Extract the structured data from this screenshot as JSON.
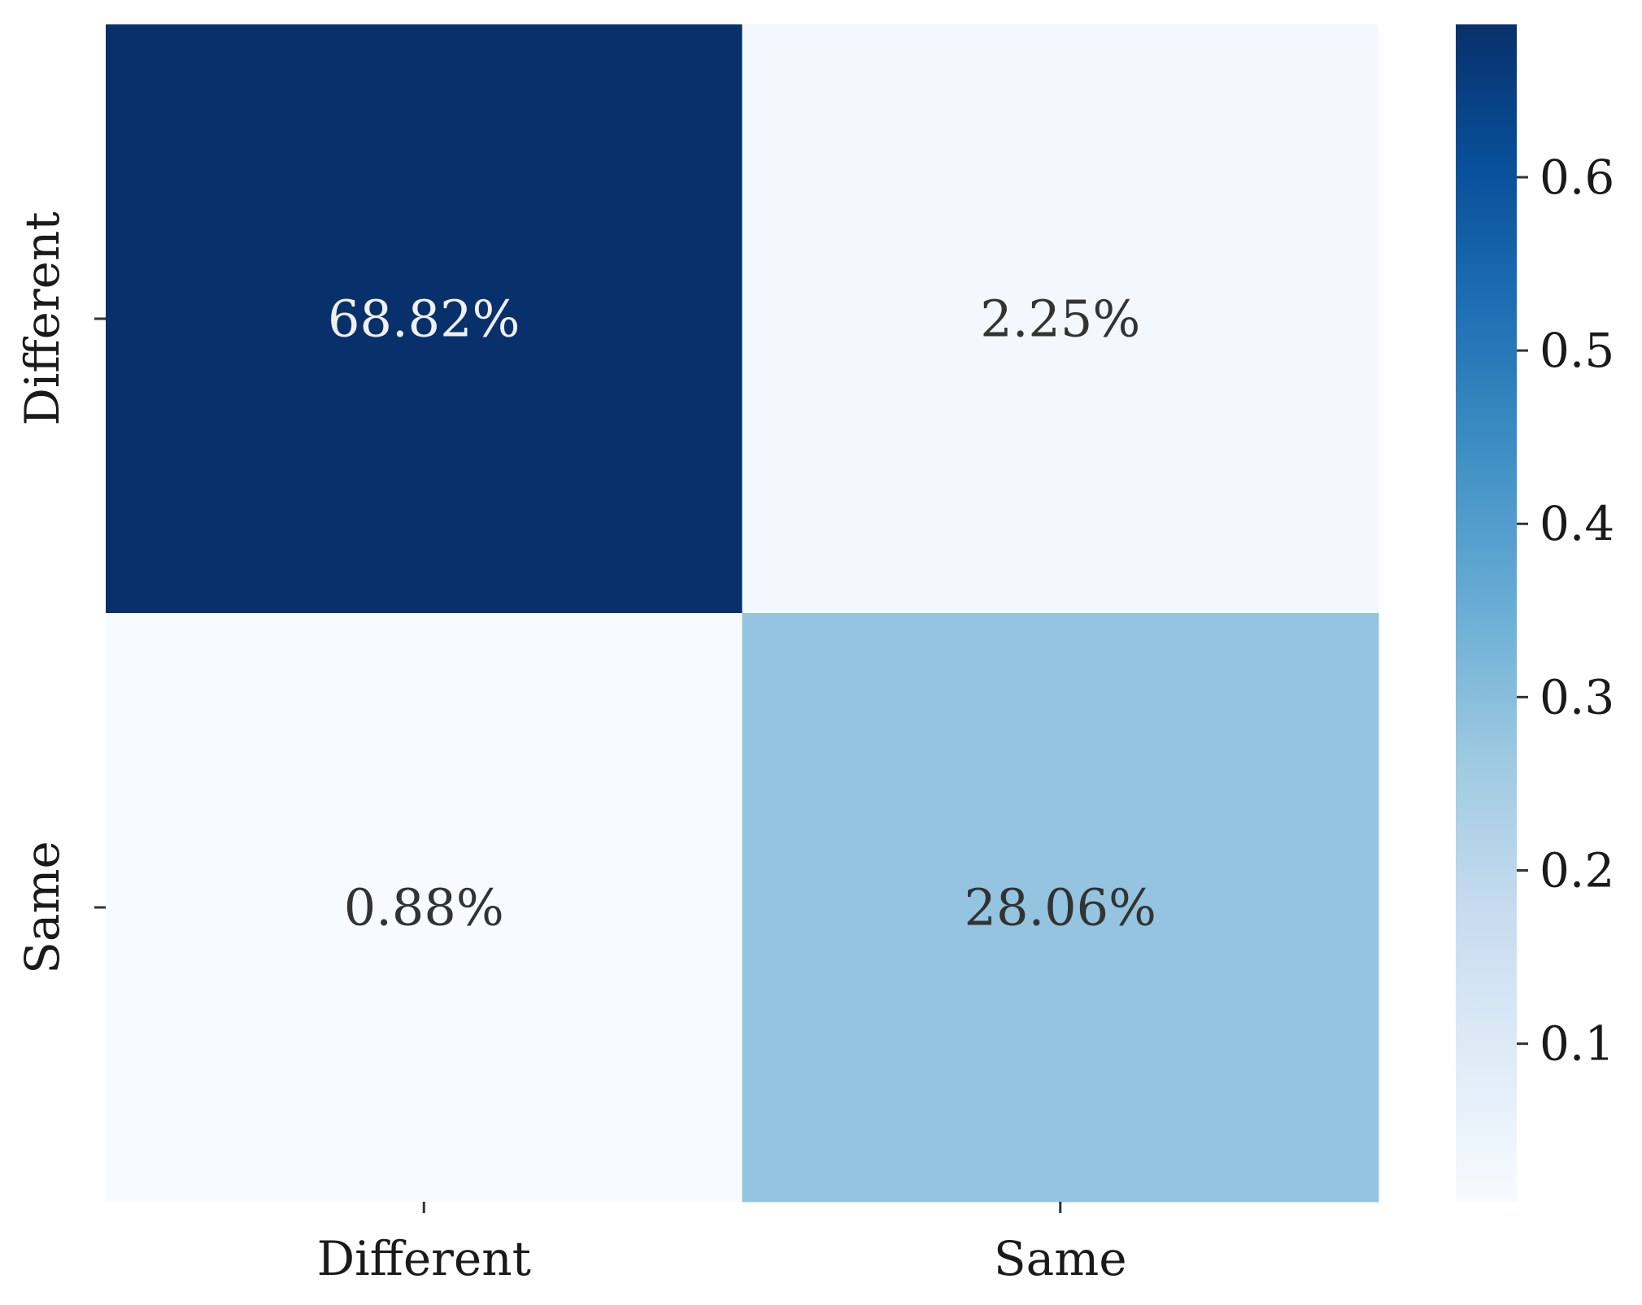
{
  "chart_data": {
    "type": "heatmap",
    "title": "",
    "xlabel": "",
    "ylabel": "",
    "x_categories": [
      "Different",
      "Same"
    ],
    "y_categories": [
      "Different",
      "Same"
    ],
    "values": [
      [
        0.6882,
        0.0225
      ],
      [
        0.0088,
        0.2806
      ]
    ],
    "annotations": [
      [
        "68.82%",
        "2.25%"
      ],
      [
        "0.88%",
        "28.06%"
      ]
    ],
    "colormap": "Blues",
    "colorbar": {
      "range": [
        0.0088,
        0.6882
      ],
      "ticks": [
        0.1,
        0.2,
        0.3,
        0.4,
        0.5,
        0.6
      ],
      "tick_labels": [
        "0.1",
        "0.2",
        "0.3",
        "0.4",
        "0.5",
        "0.6"
      ]
    },
    "colors": {
      "max": "#08306b",
      "min": "#f7fbff",
      "text_dark": "#333333",
      "text_light": "#f0f0f0"
    }
  }
}
